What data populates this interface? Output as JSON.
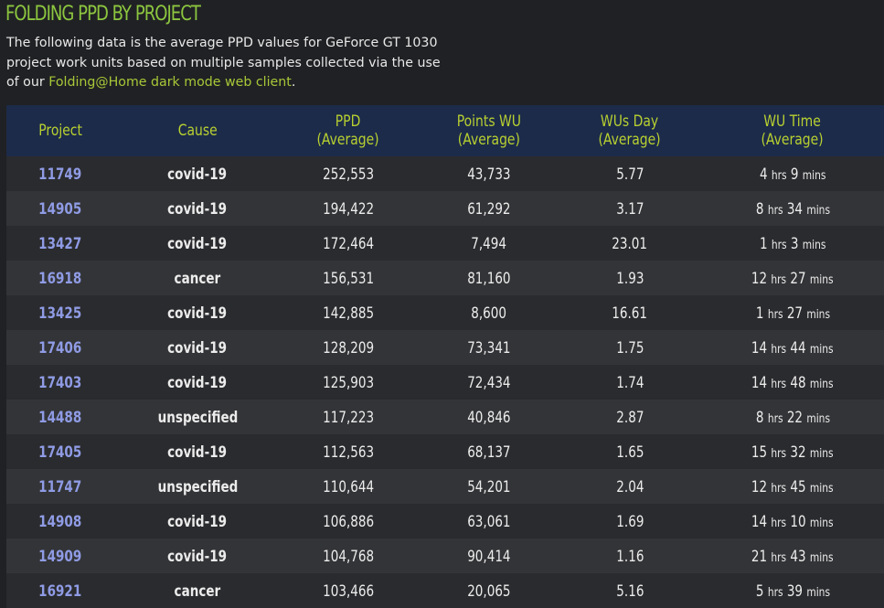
{
  "page": {
    "title": "FOLDING PPD BY PROJECT",
    "description_before": "The following data is the average PPD values for GeForce GT 1030 project work units based on multiple samples collected via the use of our ",
    "link_text": "Folding@Home dark mode web client",
    "description_after": "."
  },
  "table": {
    "headers": [
      {
        "line1": "Project",
        "line2": ""
      },
      {
        "line1": "Cause",
        "line2": ""
      },
      {
        "line1": "PPD",
        "line2": "(Average)"
      },
      {
        "line1": "Points WU",
        "line2": "(Average)"
      },
      {
        "line1": "WUs Day",
        "line2": "(Average)"
      },
      {
        "line1": "WU Time",
        "line2": "(Average)"
      }
    ],
    "rows": [
      {
        "project": "11749",
        "cause": "covid-19",
        "ppd": "252,553",
        "points": "43,733",
        "wus_day": "5.77",
        "hrs": "4",
        "mins": "9"
      },
      {
        "project": "14905",
        "cause": "covid-19",
        "ppd": "194,422",
        "points": "61,292",
        "wus_day": "3.17",
        "hrs": "8",
        "mins": "34"
      },
      {
        "project": "13427",
        "cause": "covid-19",
        "ppd": "172,464",
        "points": "7,494",
        "wus_day": "23.01",
        "hrs": "1",
        "mins": "3"
      },
      {
        "project": "16918",
        "cause": "cancer",
        "ppd": "156,531",
        "points": "81,160",
        "wus_day": "1.93",
        "hrs": "12",
        "mins": "27"
      },
      {
        "project": "13425",
        "cause": "covid-19",
        "ppd": "142,885",
        "points": "8,600",
        "wus_day": "16.61",
        "hrs": "1",
        "mins": "27"
      },
      {
        "project": "17406",
        "cause": "covid-19",
        "ppd": "128,209",
        "points": "73,341",
        "wus_day": "1.75",
        "hrs": "14",
        "mins": "44"
      },
      {
        "project": "17403",
        "cause": "covid-19",
        "ppd": "125,903",
        "points": "72,434",
        "wus_day": "1.74",
        "hrs": "14",
        "mins": "48"
      },
      {
        "project": "14488",
        "cause": "unspecified",
        "ppd": "117,223",
        "points": "40,846",
        "wus_day": "2.87",
        "hrs": "8",
        "mins": "22"
      },
      {
        "project": "17405",
        "cause": "covid-19",
        "ppd": "112,563",
        "points": "68,137",
        "wus_day": "1.65",
        "hrs": "15",
        "mins": "32"
      },
      {
        "project": "11747",
        "cause": "unspecified",
        "ppd": "110,644",
        "points": "54,201",
        "wus_day": "2.04",
        "hrs": "12",
        "mins": "45"
      },
      {
        "project": "14908",
        "cause": "covid-19",
        "ppd": "106,886",
        "points": "63,061",
        "wus_day": "1.69",
        "hrs": "14",
        "mins": "10"
      },
      {
        "project": "14909",
        "cause": "covid-19",
        "ppd": "104,768",
        "points": "90,414",
        "wus_day": "1.16",
        "hrs": "21",
        "mins": "43"
      },
      {
        "project": "16921",
        "cause": "cancer",
        "ppd": "103,466",
        "points": "20,065",
        "wus_day": "5.16",
        "hrs": "5",
        "mins": "39"
      }
    ],
    "time_units": {
      "hrs": "hrs",
      "mins": "mins"
    }
  },
  "colors": {
    "background": "#202124",
    "title": "#8cc63f",
    "header_bg": "#1c2b4a",
    "header_text": "#b8d030",
    "project_link": "#8f9be4",
    "row_odd": "#2a2b2e",
    "row_even": "#333437"
  }
}
